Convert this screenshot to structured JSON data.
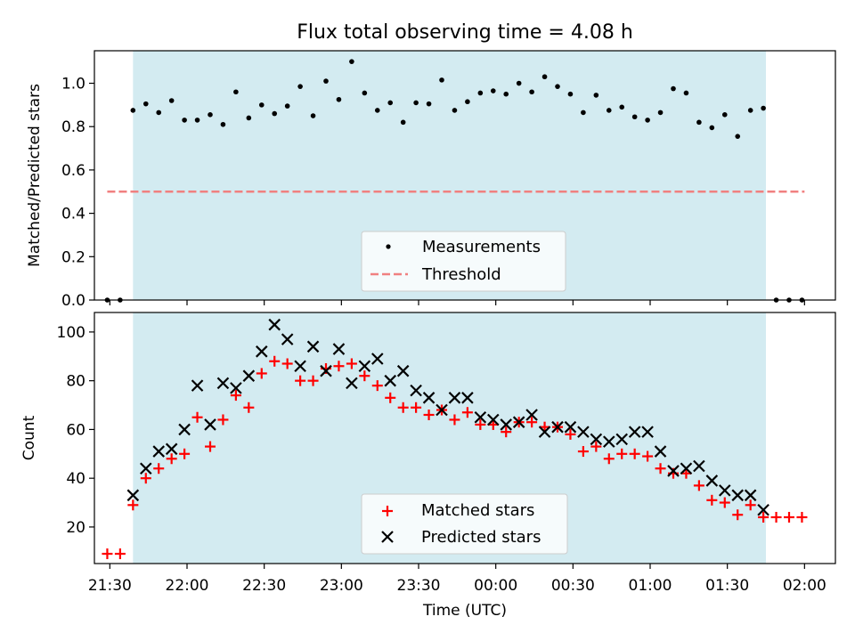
{
  "chart_data": [
    {
      "type": "scatter",
      "title": "Flux total observing time = 4.08 h",
      "xlabel": "",
      "ylabel": "Matched/Predicted stars",
      "x_unit": "time of day (UTC), HH:MM",
      "xlim": [
        "21:24",
        "02:12"
      ],
      "ylim": [
        0,
        1.15
      ],
      "yticks": [
        0.0,
        0.2,
        0.4,
        0.6,
        0.8,
        1.0
      ],
      "ytick_labels": [
        "0.0",
        "0.2",
        "0.4",
        "0.6",
        "0.8",
        "1.0"
      ],
      "observing_window": {
        "start": "21:39",
        "end": "01:45",
        "color": "#d3ebf1"
      },
      "threshold": {
        "value": 0.5,
        "x_start": "21:29",
        "x_end": "02:00",
        "color": "#f08080"
      },
      "legend": {
        "placement": "lower-center",
        "entries": [
          {
            "label": "Measurements",
            "marker": "dot",
            "color": "#000000"
          },
          {
            "label": "Threshold",
            "marker": "dashed-line",
            "color": "#f08080"
          }
        ]
      },
      "series": [
        {
          "name": "Measurements",
          "x": [
            "21:29",
            "21:34",
            "21:39",
            "21:44",
            "21:49",
            "21:54",
            "21:59",
            "22:04",
            "22:09",
            "22:14",
            "22:19",
            "22:24",
            "22:29",
            "22:34",
            "22:39",
            "22:44",
            "22:49",
            "22:54",
            "22:59",
            "23:04",
            "23:09",
            "23:14",
            "23:19",
            "23:24",
            "23:29",
            "23:34",
            "23:39",
            "23:44",
            "23:49",
            "23:54",
            "23:59",
            "00:04",
            "00:09",
            "00:14",
            "00:19",
            "00:24",
            "00:29",
            "00:34",
            "00:39",
            "00:44",
            "00:49",
            "00:54",
            "00:59",
            "01:04",
            "01:09",
            "01:14",
            "01:19",
            "01:24",
            "01:29",
            "01:34",
            "01:39",
            "01:44",
            "01:49",
            "01:54",
            "01:59"
          ],
          "y": [
            0.0,
            0.0,
            0.875,
            0.905,
            0.865,
            0.92,
            0.83,
            0.83,
            0.855,
            0.81,
            0.96,
            0.84,
            0.9,
            0.86,
            0.895,
            0.985,
            0.85,
            1.01,
            0.925,
            1.1,
            0.955,
            0.875,
            0.91,
            0.82,
            0.91,
            0.905,
            1.015,
            0.875,
            0.915,
            0.955,
            0.965,
            0.95,
            1.0,
            0.96,
            1.03,
            0.985,
            0.95,
            0.865,
            0.945,
            0.875,
            0.89,
            0.845,
            0.83,
            0.865,
            0.975,
            0.955,
            0.82,
            0.795,
            0.855,
            0.755,
            0.875,
            0.885,
            0.0,
            0.0,
            0.0
          ]
        }
      ]
    },
    {
      "type": "scatter",
      "title": "",
      "xlabel": "Time (UTC)",
      "ylabel": "Count",
      "x_unit": "time of day (UTC), HH:MM",
      "xlim": [
        "21:24",
        "02:12"
      ],
      "ylim": [
        5,
        108
      ],
      "yticks": [
        20,
        40,
        60,
        80,
        100
      ],
      "ytick_labels": [
        "20",
        "40",
        "60",
        "80",
        "100"
      ],
      "xticks": [
        "21:30",
        "22:00",
        "22:30",
        "23:00",
        "23:30",
        "00:00",
        "00:30",
        "01:00",
        "01:30",
        "02:00"
      ],
      "xtick_labels": [
        "21:30",
        "22:00",
        "22:30",
        "23:00",
        "23:30",
        "00:00",
        "00:30",
        "01:00",
        "01:30",
        "02:00"
      ],
      "observing_window": {
        "start": "21:39",
        "end": "01:45",
        "color": "#d3ebf1"
      },
      "legend": {
        "placement": "lower-center",
        "entries": [
          {
            "label": "Matched stars",
            "marker": "plus",
            "color": "#ff0000"
          },
          {
            "label": "Predicted stars",
            "marker": "x",
            "color": "#000000"
          }
        ]
      },
      "series": [
        {
          "name": "Matched stars",
          "marker": "plus",
          "color": "#ff0000",
          "x": [
            "21:29",
            "21:34",
            "21:39",
            "21:44",
            "21:49",
            "21:54",
            "21:59",
            "22:04",
            "22:09",
            "22:14",
            "22:19",
            "22:24",
            "22:29",
            "22:34",
            "22:39",
            "22:44",
            "22:49",
            "22:54",
            "22:59",
            "23:04",
            "23:09",
            "23:14",
            "23:19",
            "23:24",
            "23:29",
            "23:34",
            "23:39",
            "23:44",
            "23:49",
            "23:54",
            "23:59",
            "00:04",
            "00:09",
            "00:14",
            "00:19",
            "00:24",
            "00:29",
            "00:34",
            "00:39",
            "00:44",
            "00:49",
            "00:54",
            "00:59",
            "01:04",
            "01:09",
            "01:14",
            "01:19",
            "01:24",
            "01:29",
            "01:34",
            "01:39",
            "01:44",
            "01:49",
            "01:54",
            "01:59"
          ],
          "y": [
            9,
            9,
            29,
            40,
            44,
            48,
            50,
            65,
            53,
            64,
            74,
            69,
            83,
            88,
            87,
            80,
            80,
            85,
            86,
            87,
            82,
            78,
            73,
            69,
            69,
            66,
            68,
            64,
            67,
            62,
            62,
            59,
            63,
            63,
            61,
            61,
            58,
            51,
            53,
            48,
            50,
            50,
            49,
            44,
            42,
            42,
            37,
            31,
            30,
            25,
            29,
            24,
            24,
            24,
            24
          ]
        },
        {
          "name": "Predicted stars",
          "marker": "x",
          "color": "#000000",
          "x": [
            "21:39",
            "21:44",
            "21:49",
            "21:54",
            "21:59",
            "22:04",
            "22:09",
            "22:14",
            "22:19",
            "22:24",
            "22:29",
            "22:34",
            "22:39",
            "22:44",
            "22:49",
            "22:54",
            "22:59",
            "23:04",
            "23:09",
            "23:14",
            "23:19",
            "23:24",
            "23:29",
            "23:34",
            "23:39",
            "23:44",
            "23:49",
            "23:54",
            "23:59",
            "00:04",
            "00:09",
            "00:14",
            "00:19",
            "00:24",
            "00:29",
            "00:34",
            "00:39",
            "00:44",
            "00:49",
            "00:54",
            "00:59",
            "01:04",
            "01:09",
            "01:14",
            "01:19",
            "01:24",
            "01:29",
            "01:34",
            "01:39",
            "01:44"
          ],
          "y": [
            33,
            44,
            51,
            52,
            60,
            78,
            62,
            79,
            77,
            82,
            92,
            103,
            97,
            86,
            94,
            84,
            93,
            79,
            86,
            89,
            80,
            84,
            76,
            73,
            68,
            73,
            73,
            65,
            64,
            62,
            63,
            66,
            59,
            61,
            61,
            59,
            56,
            55,
            56,
            59,
            59,
            51,
            43,
            44,
            45,
            39,
            35,
            33,
            33,
            27
          ]
        }
      ]
    }
  ]
}
